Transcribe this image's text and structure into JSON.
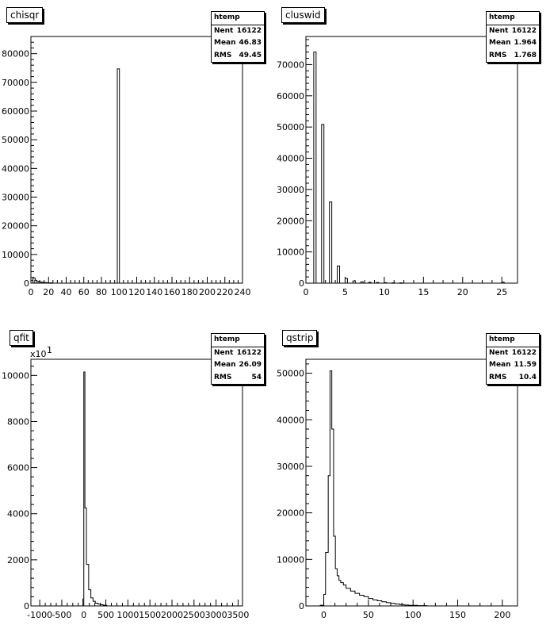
{
  "chart_data": [
    {
      "type": "bar",
      "title": "chisqr",
      "stats": {
        "name": "htemp",
        "entries_label": "Nent",
        "entries": "16122",
        "mean_label": "Mean",
        "mean": "46.83",
        "rms_label": "RMS",
        "rms": "49.45"
      },
      "xlim": [
        0,
        240
      ],
      "ylim": [
        0,
        86000
      ],
      "xticks": [
        0,
        20,
        40,
        60,
        80,
        100,
        120,
        140,
        160,
        180,
        200,
        220,
        240
      ],
      "xtick_labels": [
        "0",
        "20",
        "40",
        "60",
        "80",
        "100",
        "120",
        "140",
        "160",
        "180",
        "200",
        "220",
        "240"
      ],
      "yticks": [
        0,
        10000,
        20000,
        30000,
        40000,
        50000,
        60000,
        70000,
        80000
      ],
      "ytick_labels": [
        "0",
        "10000",
        "20000",
        "30000",
        "40000",
        "50000",
        "60000",
        "70000",
        "80000"
      ],
      "bin_width": 2.4,
      "bins": [
        [
          0,
          1000
        ],
        [
          2.4,
          1800
        ],
        [
          4.4,
          1000
        ],
        [
          6.8,
          600
        ],
        [
          9.2,
          400
        ],
        [
          12.4,
          300
        ],
        [
          14.8,
          200
        ],
        [
          18,
          150
        ],
        [
          21.6,
          100
        ],
        [
          98,
          74700
        ]
      ],
      "y_exponent": ""
    },
    {
      "type": "bar",
      "title": "cluswid",
      "stats": {
        "name": "htemp",
        "entries_label": "Nent",
        "entries": "16122",
        "mean_label": "Mean",
        "mean": "1.964",
        "rms_label": "RMS",
        "rms": "1.768"
      },
      "xlim": [
        0,
        27
      ],
      "ylim": [
        0,
        79000
      ],
      "xticks": [
        0,
        5,
        10,
        15,
        20,
        25
      ],
      "xtick_labels": [
        "0",
        "5",
        "10",
        "15",
        "20",
        "25"
      ],
      "yticks": [
        0,
        10000,
        20000,
        30000,
        40000,
        50000,
        60000,
        70000
      ],
      "ytick_labels": [
        "0",
        "10000",
        "20000",
        "30000",
        "40000",
        "50000",
        "60000",
        "70000"
      ],
      "bin_width": 0.3,
      "bins": [
        [
          1,
          74000
        ],
        [
          2,
          50800
        ],
        [
          3,
          26000
        ],
        [
          4,
          5500
        ],
        [
          5,
          1500
        ],
        [
          6,
          700
        ],
        [
          7,
          400
        ],
        [
          8,
          250
        ],
        [
          9,
          200
        ],
        [
          10,
          150
        ],
        [
          11,
          100
        ],
        [
          12,
          80
        ],
        [
          25,
          300
        ]
      ],
      "y_exponent": ""
    },
    {
      "type": "area",
      "title": "qfit",
      "stats": {
        "name": "htemp",
        "entries_label": "Nent",
        "entries": "16122",
        "mean_label": "Mean",
        "mean": "26.09",
        "rms_label": "RMS",
        "rms": "54"
      },
      "xlim": [
        -1200,
        3600
      ],
      "ylim": [
        0,
        10700
      ],
      "xticks": [
        -1000,
        -500,
        0,
        500,
        1000,
        1500,
        2000,
        2500,
        3000,
        3500
      ],
      "xtick_labels": [
        "-1000",
        "-500",
        "0",
        "500",
        "1000",
        "1500",
        "2000",
        "2500",
        "3000",
        "3500"
      ],
      "yticks": [
        0,
        2000,
        4000,
        6000,
        8000,
        10000
      ],
      "ytick_labels": [
        "0",
        "2000",
        "4000",
        "6000",
        "8000",
        "10000"
      ],
      "x": [
        -20,
        0,
        25,
        60,
        110,
        160,
        210,
        260,
        320,
        380,
        440,
        520
      ],
      "y": [
        300,
        10150,
        4250,
        1800,
        700,
        350,
        200,
        120,
        80,
        50,
        30,
        0
      ],
      "y_exponent": "x10",
      "y_exponent_power": "1"
    },
    {
      "type": "area",
      "title": "qstrip",
      "stats": {
        "name": "htemp",
        "entries_label": "Nent",
        "entries": "16122",
        "mean_label": "Mean",
        "mean": "11.59",
        "rms_label": "RMS",
        "rms": "10.4"
      },
      "xlim": [
        -20,
        217
      ],
      "ylim": [
        0,
        53000
      ],
      "xticks": [
        0,
        50,
        100,
        150,
        200
      ],
      "xtick_labels": [
        "0",
        "50",
        "100",
        "150",
        "200"
      ],
      "yticks": [
        0,
        10000,
        20000,
        30000,
        40000,
        50000
      ],
      "ytick_labels": [
        "0",
        "10000",
        "20000",
        "30000",
        "40000",
        "50000"
      ],
      "x": [
        -4,
        0,
        2,
        5,
        7,
        9,
        11,
        13,
        15,
        17,
        19,
        22,
        25,
        30,
        35,
        40,
        45,
        50,
        55,
        60,
        65,
        70,
        75,
        80,
        85,
        90,
        95,
        105,
        115
      ],
      "y": [
        150,
        2500,
        11500,
        28000,
        50500,
        38000,
        15000,
        8000,
        6500,
        5500,
        5000,
        4500,
        3800,
        3200,
        2700,
        2300,
        2000,
        1600,
        1300,
        1100,
        900,
        700,
        550,
        400,
        300,
        200,
        120,
        60,
        20
      ],
      "y_exponent": ""
    }
  ]
}
